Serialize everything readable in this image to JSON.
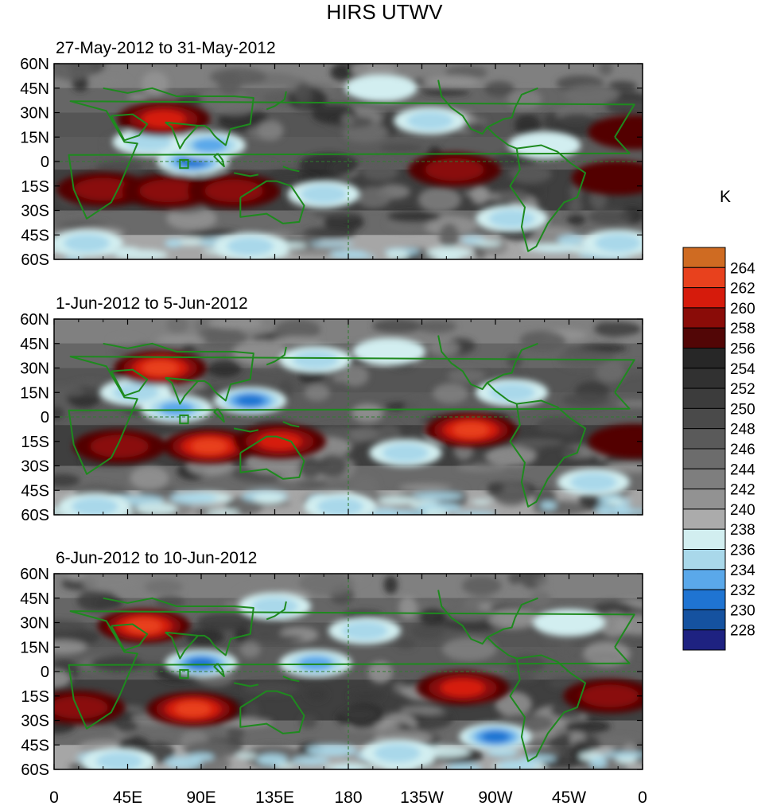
{
  "chart_data": {
    "type": "heatmap",
    "title": "HIRS UTWV",
    "units": "K",
    "x_ticks": [
      "0",
      "45E",
      "90E",
      "135E",
      "180",
      "135W",
      "90W",
      "45W",
      "0"
    ],
    "y_ticks": [
      "60N",
      "45N",
      "30N",
      "15N",
      "0",
      "15S",
      "30S",
      "45S",
      "60S"
    ],
    "lon_range": [
      0,
      360
    ],
    "lat_range": [
      -60,
      60
    ],
    "colorbar": {
      "labels": [
        "264",
        "262",
        "260",
        "258",
        "256",
        "254",
        "252",
        "250",
        "248",
        "246",
        "244",
        "242",
        "240",
        "238",
        "236",
        "234",
        "232",
        "230",
        "228"
      ],
      "colors": [
        "#cf6b22",
        "#e8411d",
        "#d61b0c",
        "#8a0c08",
        "#520606",
        "#272727",
        "#313131",
        "#3c3c3c",
        "#4a4a4a",
        "#5a5a5a",
        "#6c6c6c",
        "#7e7e7e",
        "#929292",
        "#ababab",
        "#d2eef0",
        "#a9d8ea",
        "#5aa8ea",
        "#1f74d2",
        "#1552a0",
        "#1e2281"
      ]
    },
    "panels": [
      {
        "subtitle": "27-May-2012 to 31-May-2012",
        "features": [
          {
            "kind": "moist",
            "lon": 85,
            "lat": 0,
            "value": 232
          },
          {
            "kind": "moist",
            "lon": 58,
            "lat": 12,
            "value": 236
          },
          {
            "kind": "moist",
            "lon": 95,
            "lat": 10,
            "value": 234
          },
          {
            "kind": "moist",
            "lon": 165,
            "lat": -20,
            "value": 236
          },
          {
            "kind": "moist",
            "lon": 230,
            "lat": 25,
            "value": 236
          },
          {
            "kind": "moist",
            "lon": 200,
            "lat": 45,
            "value": 238
          },
          {
            "kind": "moist",
            "lon": 280,
            "lat": -35,
            "value": 236
          },
          {
            "kind": "moist",
            "lon": 345,
            "lat": -50,
            "value": 236
          },
          {
            "kind": "moist",
            "lon": 120,
            "lat": -52,
            "value": 236
          },
          {
            "kind": "moist",
            "lon": 20,
            "lat": -50,
            "value": 236
          },
          {
            "kind": "moist",
            "lon": 300,
            "lat": 10,
            "value": 238
          },
          {
            "kind": "dry",
            "lon": 30,
            "lat": -17,
            "value": 258
          },
          {
            "kind": "dry",
            "lon": 70,
            "lat": -18,
            "value": 258
          },
          {
            "kind": "dry",
            "lon": 110,
            "lat": -18,
            "value": 258
          },
          {
            "kind": "dry",
            "lon": 67,
            "lat": 26,
            "value": 260
          },
          {
            "kind": "dry",
            "lon": 245,
            "lat": -5,
            "value": 258
          },
          {
            "kind": "dry",
            "lon": 345,
            "lat": -10,
            "value": 256
          },
          {
            "kind": "dry",
            "lon": 355,
            "lat": 18,
            "value": 256
          }
        ]
      },
      {
        "subtitle": "1-Jun-2012 to 5-Jun-2012",
        "features": [
          {
            "kind": "moist",
            "lon": 50,
            "lat": 15,
            "value": 236
          },
          {
            "kind": "moist",
            "lon": 75,
            "lat": 5,
            "value": 234
          },
          {
            "kind": "moist",
            "lon": 120,
            "lat": 10,
            "value": 232
          },
          {
            "kind": "moist",
            "lon": 160,
            "lat": 35,
            "value": 236
          },
          {
            "kind": "moist",
            "lon": 205,
            "lat": 40,
            "value": 238
          },
          {
            "kind": "moist",
            "lon": 215,
            "lat": -22,
            "value": 236
          },
          {
            "kind": "moist",
            "lon": 280,
            "lat": 15,
            "value": 236
          },
          {
            "kind": "moist",
            "lon": 330,
            "lat": -40,
            "value": 236
          },
          {
            "kind": "moist",
            "lon": 25,
            "lat": -55,
            "value": 236
          },
          {
            "kind": "moist",
            "lon": 175,
            "lat": -55,
            "value": 236
          },
          {
            "kind": "dry",
            "lon": 65,
            "lat": 30,
            "value": 262
          },
          {
            "kind": "dry",
            "lon": 40,
            "lat": -18,
            "value": 258
          },
          {
            "kind": "dry",
            "lon": 95,
            "lat": -18,
            "value": 262
          },
          {
            "kind": "dry",
            "lon": 138,
            "lat": -15,
            "value": 260
          },
          {
            "kind": "dry",
            "lon": 255,
            "lat": -8,
            "value": 262
          },
          {
            "kind": "dry",
            "lon": 355,
            "lat": -15,
            "value": 256
          }
        ]
      },
      {
        "subtitle": "6-Jun-2012 to 10-Jun-2012",
        "features": [
          {
            "kind": "moist",
            "lon": 90,
            "lat": 5,
            "value": 232
          },
          {
            "kind": "moist",
            "lon": 160,
            "lat": 5,
            "value": 234
          },
          {
            "kind": "moist",
            "lon": 135,
            "lat": 40,
            "value": 236
          },
          {
            "kind": "moist",
            "lon": 190,
            "lat": 25,
            "value": 236
          },
          {
            "kind": "moist",
            "lon": 270,
            "lat": -40,
            "value": 232
          },
          {
            "kind": "moist",
            "lon": 315,
            "lat": 30,
            "value": 238
          },
          {
            "kind": "moist",
            "lon": 40,
            "lat": -55,
            "value": 236
          },
          {
            "kind": "moist",
            "lon": 210,
            "lat": -50,
            "value": 236
          },
          {
            "kind": "dry",
            "lon": 55,
            "lat": 28,
            "value": 262
          },
          {
            "kind": "dry",
            "lon": 85,
            "lat": -23,
            "value": 262
          },
          {
            "kind": "dry",
            "lon": 15,
            "lat": -22,
            "value": 258
          },
          {
            "kind": "dry",
            "lon": 250,
            "lat": -10,
            "value": 260
          },
          {
            "kind": "dry",
            "lon": 340,
            "lat": -15,
            "value": 258
          }
        ]
      }
    ]
  }
}
